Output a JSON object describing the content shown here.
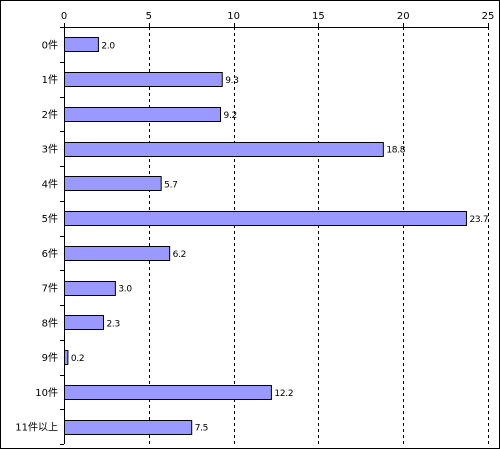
{
  "chart_data": {
    "type": "bar",
    "orientation": "horizontal",
    "title": "",
    "xlabel": "",
    "ylabel": "",
    "categories": [
      "0件",
      "1件",
      "2件",
      "3件",
      "4件",
      "5件",
      "6件",
      "7件",
      "8件",
      "9件",
      "10件",
      "11件以上"
    ],
    "values": [
      2.0,
      9.3,
      9.2,
      18.8,
      5.7,
      23.7,
      6.2,
      3.0,
      2.3,
      0.2,
      12.2,
      7.5
    ],
    "value_labels": [
      "2.0",
      "9.3",
      "9.2",
      "18.8",
      "5.7",
      "23.7",
      "6.2",
      "3.0",
      "2.3",
      "0.2",
      "12.2",
      "7.5"
    ],
    "xlim": [
      0,
      25
    ],
    "xticks": [
      0,
      5,
      10,
      15,
      20,
      25
    ],
    "xtick_labels": [
      "0",
      "5",
      "10",
      "15",
      "20",
      "25"
    ],
    "x_axis_position": "top",
    "grid": "vertical dashed",
    "legend": "none",
    "colors": {
      "bar_fill": "#9999ff",
      "bar_stroke": "#000000",
      "grid": "#000000",
      "axis": "#000000",
      "background": "#ffffff"
    }
  }
}
